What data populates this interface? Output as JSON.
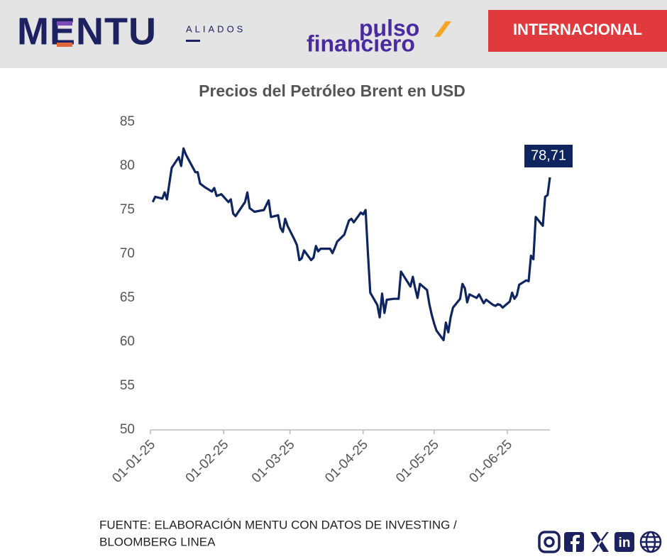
{
  "header": {
    "brand": "MENTU",
    "brand_tag": "ALIADOS",
    "logo_line1": "pulso",
    "logo_line2": "financiero",
    "section": "INTERNACIONAL"
  },
  "chart_data": {
    "type": "line",
    "title": "Precios del Petróleo Brent en USD",
    "color": "#0f2560",
    "x": [
      "02-01-25",
      "03-01-25",
      "06-01-25",
      "07-01-25",
      "08-01-25",
      "10-01-25",
      "13-01-25",
      "14-01-25",
      "15-01-25",
      "16-01-25",
      "17-01-25",
      "20-01-25",
      "21-01-25",
      "22-01-25",
      "24-01-25",
      "27-01-25",
      "28-01-25",
      "29-01-25",
      "31-01-25",
      "03-02-25",
      "04-02-25",
      "05-02-25",
      "06-02-25",
      "10-02-25",
      "11-02-25",
      "12-02-25",
      "14-02-25",
      "18-02-25",
      "20-02-25",
      "21-02-25",
      "24-02-25",
      "25-02-25",
      "26-02-25",
      "27-02-25",
      "28-02-25",
      "03-03-25",
      "04-03-25",
      "05-03-25",
      "06-03-25",
      "07-03-25",
      "10-03-25",
      "11-03-25",
      "12-03-25",
      "13-03-25",
      "14-03-25",
      "17-03-25",
      "18-03-25",
      "19-03-25",
      "20-03-25",
      "21-03-25",
      "24-03-25",
      "25-03-25",
      "26-03-25",
      "27-03-25",
      "28-03-25",
      "31-03-25",
      "01-04-25",
      "02-04-25",
      "03-04-25",
      "04-04-25",
      "07-04-25",
      "08-04-25",
      "09-04-25",
      "10-04-25",
      "11-04-25",
      "14-04-25",
      "16-04-25",
      "17-04-25",
      "21-04-25",
      "22-04-25",
      "23-04-25",
      "24-04-25",
      "25-04-25",
      "28-04-25",
      "29-04-25",
      "30-04-25",
      "01-05-25",
      "02-05-25",
      "05-05-25",
      "06-05-25",
      "07-05-25",
      "08-05-25",
      "09-05-25",
      "12-05-25",
      "13-05-25",
      "14-05-25",
      "15-05-25",
      "16-05-25",
      "19-05-25",
      "20-05-25",
      "21-05-25",
      "22-05-25",
      "23-05-25",
      "26-05-25",
      "27-05-25",
      "28-05-25",
      "29-05-25",
      "30-05-25",
      "02-06-25",
      "03-06-25",
      "04-06-25",
      "05-06-25",
      "06-06-25",
      "09-06-25",
      "10-06-25",
      "11-06-25",
      "12-06-25",
      "13-06-25",
      "16-06-25",
      "17-06-25",
      "18-06-25",
      "19-06-25"
    ],
    "values": [
      75.9,
      76.5,
      76.3,
      77.0,
      76.2,
      79.8,
      81.0,
      80.0,
      82.0,
      81.3,
      80.8,
      79.3,
      79.3,
      78.0,
      77.6,
      77.1,
      77.5,
      76.6,
      76.8,
      75.9,
      76.2,
      74.6,
      74.3,
      75.9,
      77.0,
      75.2,
      74.8,
      75.0,
      76.1,
      74.2,
      74.4,
      73.0,
      72.5,
      74.0,
      73.2,
      71.6,
      71.0,
      69.3,
      69.5,
      70.4,
      69.3,
      69.6,
      70.9,
      70.3,
      70.6,
      70.6,
      70.6,
      70.1,
      70.7,
      71.4,
      72.2,
      73.0,
      73.8,
      74.0,
      73.6,
      74.7,
      74.5,
      75.0,
      70.1,
      65.6,
      64.2,
      62.8,
      65.5,
      63.3,
      64.8,
      64.9,
      64.9,
      68.0,
      66.3,
      67.4,
      66.1,
      65.0,
      66.6,
      65.9,
      64.3,
      63.1,
      62.1,
      61.3,
      60.2,
      62.2,
      61.1,
      62.8,
      63.9,
      64.9,
      66.6,
      66.1,
      64.5,
      65.4,
      65.0,
      65.4,
      64.9,
      64.4,
      64.8,
      64.2,
      64.1,
      64.3,
      64.2,
      63.9,
      64.6,
      65.6,
      64.9,
      65.3,
      66.5,
      67.0,
      66.9,
      69.8,
      69.4,
      74.2,
      73.2,
      76.5,
      76.7,
      78.71
    ],
    "value_labels": {
      "111": "78,71"
    },
    "xlim": [
      "01-01-25",
      "19-06-25"
    ],
    "xticks": [
      "01-01-25",
      "01-02-25",
      "01-03-25",
      "01-04-25",
      "01-05-25",
      "01-06-25"
    ],
    "ylim": [
      50,
      85
    ],
    "yticks": [
      50,
      55,
      60,
      65,
      70,
      75,
      80,
      85
    ],
    "grid": false
  },
  "footer": {
    "source_lines": [
      "FUENTE: ELABORACIÓN MENTU CON DATOS DE INVESTING /",
      "BLOOMBERG LINEA"
    ]
  }
}
